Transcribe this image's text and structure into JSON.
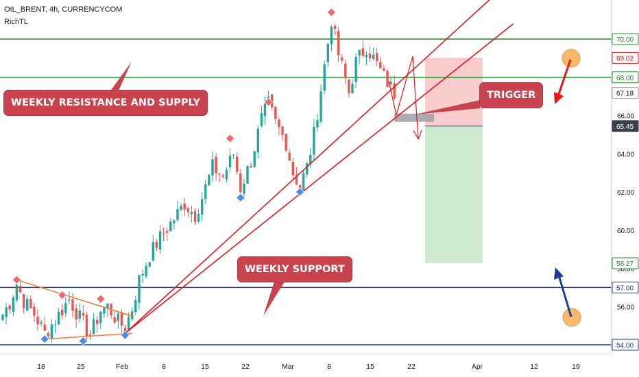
{
  "header": {
    "symbol": "OIL_BRENT, 4h, CURRENCYCOM",
    "indicator": "RichTL"
  },
  "colors": {
    "bull": "#26a69a",
    "bear": "#ef5350",
    "trend": "#e8171b",
    "resistance": "#1b8f2a",
    "support": "#1a3d9a",
    "callout": "#c8434d",
    "wedge": "#f57c3b",
    "stop_zone": "#f7c6c8",
    "target_zone": "#c9e9cd",
    "blue_marker": "#4a90e2",
    "red_marker": "#ef6b6b"
  },
  "callouts": {
    "resistance": "WEEKLY RESISTANCE AND SUPPLY",
    "support": "WEEKLY SUPPORT",
    "trigger": "TRIGGER"
  },
  "icons": [
    "up-arrow-icon",
    "down-arrow-icon"
  ],
  "chart_data": {
    "type": "candlestick",
    "ylim": [
      53.5,
      73.0
    ],
    "y_ticks": [
      54,
      56,
      58,
      60,
      62,
      64,
      66,
      68,
      70
    ],
    "y_tick_labels": [
      "54.00",
      "56.00",
      "58.00",
      "60.00",
      "62.00",
      "64.00",
      "66.00",
      "68.00",
      "70.00"
    ],
    "x_ticks": [
      "18",
      "25",
      "Feb",
      "8",
      "15",
      "22",
      "Mar",
      "8",
      "15",
      "22",
      "Apr",
      "12",
      "19"
    ],
    "highlighted_price_labels": [
      {
        "value": 70.0,
        "label": "70.00",
        "style": "green"
      },
      {
        "value": 69.02,
        "label": "69.02",
        "style": "red"
      },
      {
        "value": 68.0,
        "label": "68.00",
        "style": "green"
      },
      {
        "value": 67.18,
        "label": "67.18",
        "style": "grey"
      },
      {
        "value": 65.45,
        "label": "65.45",
        "style": "dark"
      },
      {
        "value": 58.27,
        "label": "58.27",
        "style": "green"
      },
      {
        "value": 57.0,
        "label": "57.00",
        "style": "blue"
      },
      {
        "value": 54.0,
        "label": "54.00",
        "style": "blue"
      }
    ],
    "horizontal_levels": [
      {
        "value": 70.0,
        "kind": "resistance"
      },
      {
        "value": 68.0,
        "kind": "resistance"
      },
      {
        "value": 57.0,
        "kind": "support"
      },
      {
        "value": 54.0,
        "kind": "support"
      }
    ],
    "trade_setup": {
      "stop": 69.02,
      "entry": 65.45,
      "target": 58.27
    },
    "close_path": [
      [
        0,
        55.6
      ],
      [
        2,
        56.2
      ],
      [
        4,
        57.2
      ],
      [
        6,
        56.3
      ],
      [
        9,
        55.6
      ],
      [
        12,
        54.6
      ],
      [
        15,
        55.3
      ],
      [
        19,
        56.4
      ],
      [
        22,
        55.4
      ],
      [
        25,
        54.5
      ],
      [
        28,
        55.8
      ],
      [
        30,
        56.0
      ],
      [
        33,
        55.2
      ],
      [
        35,
        54.9
      ],
      [
        37,
        55.9
      ],
      [
        39,
        57.4
      ],
      [
        42,
        58.7
      ],
      [
        45,
        59.6
      ],
      [
        49,
        60.6
      ],
      [
        52,
        61.4
      ],
      [
        55,
        60.8
      ],
      [
        57,
        61.7
      ],
      [
        60,
        63.3
      ],
      [
        63,
        62.8
      ],
      [
        66,
        64.0
      ],
      [
        68,
        62.2
      ],
      [
        71,
        63.6
      ],
      [
        74,
        65.8
      ],
      [
        76,
        66.6
      ],
      [
        78,
        65.6
      ],
      [
        81,
        64.6
      ],
      [
        83,
        63.0
      ],
      [
        85,
        62.3
      ],
      [
        87,
        63.3
      ],
      [
        89,
        65.0
      ],
      [
        92,
        68.6
      ],
      [
        94,
        71.0
      ],
      [
        96,
        69.2
      ],
      [
        99,
        67.2
      ],
      [
        101,
        68.8
      ],
      [
        104,
        69.6
      ],
      [
        106,
        69.0
      ],
      [
        109,
        68.0
      ],
      [
        112,
        67.2
      ]
    ],
    "markers": [
      {
        "x": 4,
        "y": 57.4,
        "color": "red"
      },
      {
        "x": 17,
        "y": 56.6,
        "color": "red"
      },
      {
        "x": 28,
        "y": 56.4,
        "color": "red"
      },
      {
        "x": 65,
        "y": 64.8,
        "color": "red"
      },
      {
        "x": 76,
        "y": 66.7,
        "color": "red"
      },
      {
        "x": 94,
        "y": 71.4,
        "color": "red"
      },
      {
        "x": 12,
        "y": 54.3,
        "color": "blue"
      },
      {
        "x": 23,
        "y": 54.2,
        "color": "blue"
      },
      {
        "x": 35,
        "y": 54.5,
        "color": "blue"
      },
      {
        "x": 68,
        "y": 61.7,
        "color": "blue"
      },
      {
        "x": 85,
        "y": 62.0,
        "color": "blue"
      }
    ],
    "trendlines": [
      {
        "from": [
          35,
          54.6
        ],
        "to": [
          146,
          73.2
        ],
        "kind": "upper-channel"
      },
      {
        "from": [
          35,
          54.6
        ],
        "to": [
          146,
          70.8
        ],
        "kind": "lower-channel"
      },
      {
        "from": [
          4,
          57.4
        ],
        "to": [
          37,
          55.5
        ],
        "kind": "wedge-top"
      },
      {
        "from": [
          12,
          54.3
        ],
        "to": [
          37,
          54.6
        ],
        "kind": "wedge-bottom"
      }
    ]
  }
}
